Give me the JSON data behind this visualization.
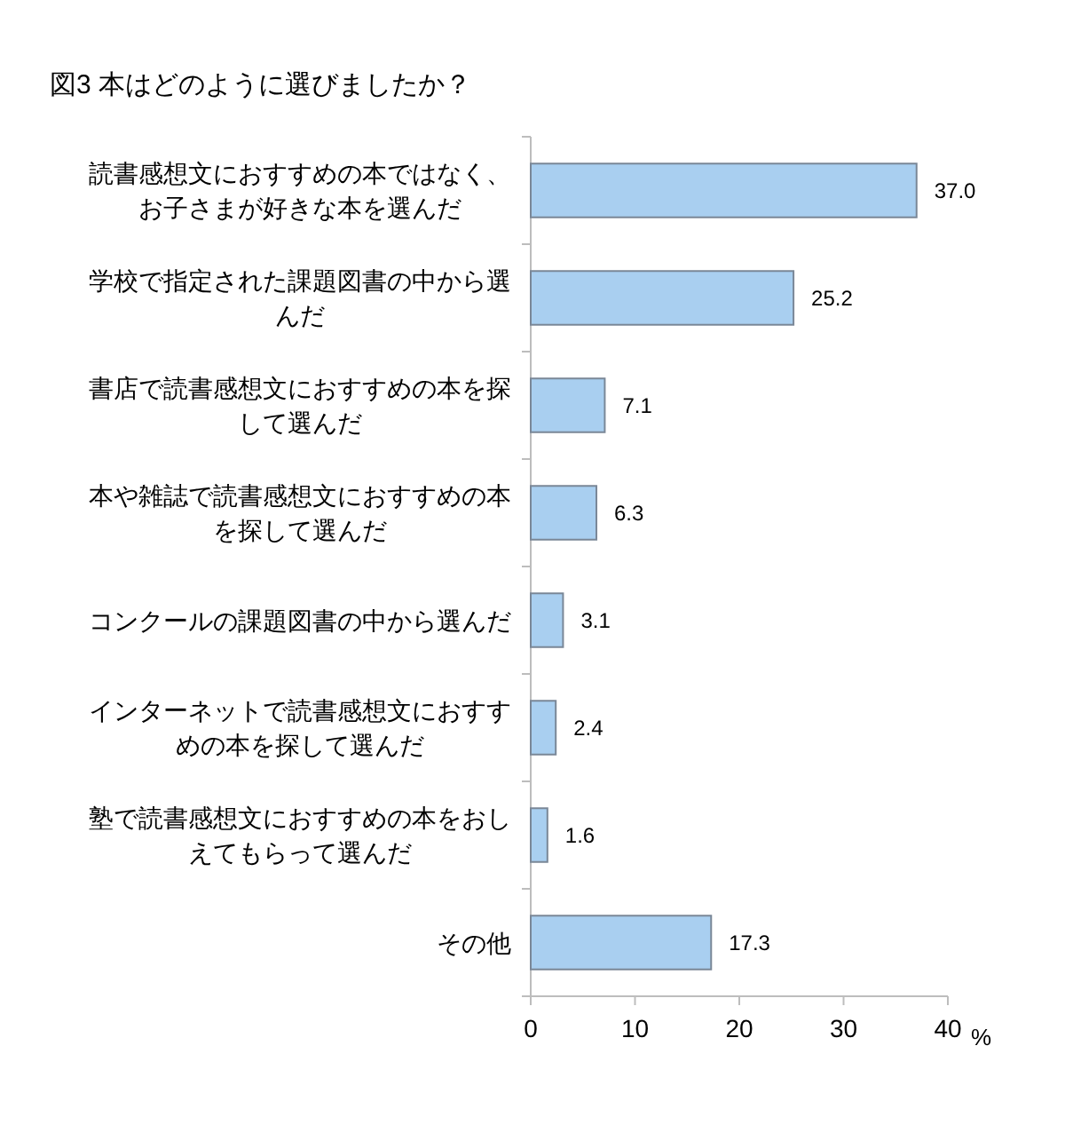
{
  "chart_data": {
    "type": "bar",
    "orientation": "horizontal",
    "title": "図3 本はどのように選びましたか？",
    "xlabel": "%",
    "categories": [
      "読書感想文におすすめの本ではなく、お子さまが好きな本を選んだ",
      "学校で指定された課題図書の中から選んだ",
      "書店で読書感想文におすすめの本を探して選んだ",
      "本や雑誌で読書感想文におすすめの本を探して選んだ",
      "コンクールの課題図書の中から選んだ",
      "インターネットで読書感想文におすすめの本を探して選んだ",
      "塾で読書感想文におすすめの本をおしえてもらって選んだ",
      "その他"
    ],
    "values": [
      37.0,
      25.2,
      7.1,
      6.3,
      3.1,
      2.4,
      1.6,
      17.3
    ],
    "value_labels": [
      "37.0",
      "25.2",
      "7.1",
      "6.3",
      "3.1",
      "2.4",
      "1.6",
      "17.3"
    ],
    "color": "#a9cff0",
    "xlim": [
      0,
      40
    ],
    "xticks": [
      0,
      10,
      20,
      30,
      40
    ]
  }
}
